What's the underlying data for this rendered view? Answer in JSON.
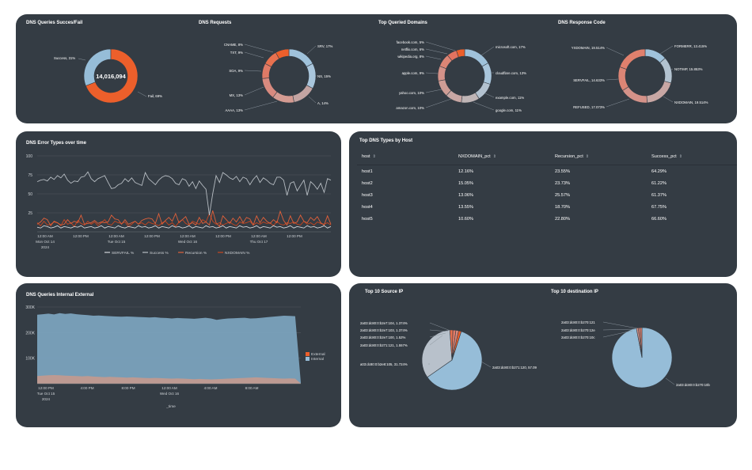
{
  "colors": {
    "panel": "#343c44",
    "orange": "#ec5f2b",
    "lightblue": "#96bdd8",
    "salmon": "#d88f84",
    "grey": "#b9bec4",
    "grid": "#50575f"
  },
  "panels": {
    "queries_success_fail": {
      "title": "DNS Queries Succes/Fail",
      "center_value": "14,016,094",
      "labels": [
        "Success, 31%",
        "Fail, 69%"
      ]
    },
    "dns_requests": {
      "title": "DNS Requests",
      "labels": [
        "CNAME, 8%",
        "TXT, 9%",
        "SOA, 9%",
        "MX, 13%",
        "AAAA, 13%",
        "SRV, 17%",
        "NS, 15%",
        "A, 14%"
      ]
    },
    "top_domains": {
      "title": "Top Queried Domains",
      "labels": [
        "facebook.com, 5%",
        "netflix.com, 6%",
        "wikipedia.org, 8%",
        "apple.com, 9%",
        "yahoo.com, 10%",
        "amazon.com, 10%",
        "microsoft.com, 17%",
        "cloudflare.com, 13%",
        "example.com, 11%",
        "google.com, 11%"
      ]
    },
    "response_code": {
      "title": "DNS Response Code",
      "labels": [
        "YXDOMAIN, 19.514%",
        "SERVFAIL, 14.633%",
        "REFUSED, 17.073%",
        "FORMERR, 13.415%",
        "NOTIMP, 15.853%",
        "NXDOMAIN, 19.514%"
      ]
    },
    "error_types": {
      "title": "DNS Error Types over time",
      "y_ticks": [
        "100",
        "75",
        "50",
        "25"
      ],
      "x_ticks": [
        {
          "l1": "12:00 AM",
          "l2": "Mon Oct 14",
          "l3": "2024"
        },
        {
          "l1": "12:00 PM",
          "l2": "",
          "l3": ""
        },
        {
          "l1": "12:00 AM",
          "l2": "Tue Oct 15",
          "l3": ""
        },
        {
          "l1": "12:00 PM",
          "l2": "",
          "l3": ""
        },
        {
          "l1": "12:00 AM",
          "l2": "Wed Oct 16",
          "l3": ""
        },
        {
          "l1": "12:00 PM",
          "l2": "",
          "l3": ""
        },
        {
          "l1": "12:00 AM",
          "l2": "Thu Oct 17",
          "l3": ""
        },
        {
          "l1": "12:00 PM",
          "l2": "",
          "l3": ""
        }
      ],
      "legend": [
        "SERVFAIL %",
        "Success %",
        "Recursion %",
        "NXDOMAIN %"
      ]
    },
    "dns_types_by_host": {
      "title": "Top DNS Types by Host",
      "columns": [
        "host",
        "NXDOMAIN_pct",
        "Recursion_pct",
        "Success_pct"
      ],
      "rows": [
        [
          "host1",
          "12.16%",
          "23.55%",
          "64.29%"
        ],
        [
          "host2",
          "15.05%",
          "23.73%",
          "61.22%"
        ],
        [
          "host3",
          "13.06%",
          "25.57%",
          "61.37%"
        ],
        [
          "host4",
          "13.55%",
          "18.70%",
          "67.75%"
        ],
        [
          "host5",
          "10.60%",
          "22.80%",
          "66.60%"
        ]
      ]
    },
    "internal_external": {
      "title": "DNS Queries Internal External",
      "y_ticks": [
        "300K",
        "200K",
        "100K"
      ],
      "x_ticks": [
        {
          "l1": "12:00 PM",
          "l2": "Tue Oct 15",
          "l3": "2024"
        },
        {
          "l1": "4:00 PM",
          "l2": "",
          "l3": ""
        },
        {
          "l1": "8:00 PM",
          "l2": "",
          "l3": ""
        },
        {
          "l1": "12:00 AM",
          "l2": "Wed Oct 16",
          "l3": ""
        },
        {
          "l1": "4:00 AM",
          "l2": "",
          "l3": ""
        },
        {
          "l1": "8:00 AM",
          "l2": "",
          "l3": ""
        }
      ],
      "x_axis_label": "_time",
      "legend": [
        "External",
        "Internal"
      ]
    },
    "source_ip": {
      "title": "Top 10 Source IP",
      "labels": [
        "2a03:dc80:0:b2e7:104, 1.374%",
        "2a03:dc80:0:b2e7:103, 1.374%",
        "2a03:dc80:0:b2e7:100, 1.52%",
        "2a03:dc80:0:b271:121, 1.557%",
        "a03:dc80:0:b2e8:105, 31.724%",
        "2a03:dc80:0:b271:120, 57.09"
      ]
    },
    "dest_ip": {
      "title": "Top 10 destination IP",
      "labels": [
        "2a03:dc80:0:b270:121",
        "2a03:dc80:0:b270:12e",
        "2a03:dc80:0:b270:10c",
        "2a03:dc80:0:b270:10b"
      ]
    }
  },
  "chart_data": [
    {
      "type": "pie",
      "title": "DNS Queries Succes/Fail",
      "labels": [
        "Success",
        "Fail"
      ],
      "values": [
        31,
        69
      ]
    },
    {
      "type": "pie",
      "title": "DNS Requests",
      "labels": [
        "SRV",
        "NS",
        "A",
        "AAAA",
        "MX",
        "SOA",
        "TXT",
        "CNAME"
      ],
      "values": [
        17,
        15,
        14,
        13,
        13,
        9,
        9,
        8
      ]
    },
    {
      "type": "pie",
      "title": "Top Queried Domains",
      "labels": [
        "microsoft.com",
        "cloudflare.com",
        "example.com",
        "google.com",
        "amazon.com",
        "yahoo.com",
        "apple.com",
        "wikipedia.org",
        "netflix.com",
        "facebook.com"
      ],
      "values": [
        17,
        13,
        11,
        11,
        10,
        10,
        9,
        8,
        6,
        5
      ]
    },
    {
      "type": "pie",
      "title": "DNS Response Code",
      "labels": [
        "FORMERR",
        "NOTIMP",
        "NXDOMAIN",
        "REFUSED",
        "SERVFAIL",
        "YXDOMAIN"
      ],
      "values": [
        13.415,
        15.853,
        19.514,
        17.073,
        14.633,
        19.514
      ]
    },
    {
      "type": "line",
      "title": "DNS Error Types over time",
      "ylim": [
        0,
        100
      ],
      "series": [
        {
          "name": "Success %",
          "values": [
            66,
            68,
            69,
            67,
            72,
            69,
            74,
            71,
            76,
            68,
            64,
            67,
            66,
            72,
            73,
            79,
            70,
            66,
            70,
            72,
            74,
            65,
            57,
            58,
            62,
            64,
            70,
            66,
            71,
            65,
            63,
            61,
            78,
            70,
            66,
            62,
            68,
            72,
            74,
            73,
            70,
            64,
            62,
            70,
            68,
            60,
            66,
            57,
            67,
            61,
            56,
            22,
            50,
            74,
            65,
            78,
            75,
            71,
            69,
            73,
            66,
            72,
            70,
            62,
            69,
            74,
            65,
            71,
            68,
            64,
            62,
            72,
            72,
            68,
            48,
            64,
            66,
            54,
            61,
            68,
            48,
            66,
            62,
            56,
            64,
            52,
            70,
            68
          ]
        },
        {
          "name": "Recursion %",
          "values": [
            10,
            13,
            18,
            16,
            8,
            14,
            12,
            9,
            10,
            16,
            11,
            14,
            12,
            22,
            10,
            11,
            12,
            15,
            11,
            13,
            12,
            13,
            22,
            17,
            16,
            10,
            16,
            10,
            12,
            14,
            10,
            15,
            17,
            18,
            17,
            11,
            24,
            10,
            15,
            19,
            14,
            24,
            12,
            16,
            20,
            10,
            12,
            9,
            19,
            11,
            13,
            9,
            28,
            12,
            7,
            21,
            16,
            11,
            18,
            13,
            20,
            12,
            19,
            17,
            9,
            21,
            12,
            19,
            14,
            11,
            16,
            12,
            27,
            15,
            9,
            21,
            11,
            13,
            22,
            14,
            12,
            19,
            15,
            20,
            12,
            9,
            21,
            10
          ]
        },
        {
          "name": "NXDOMAIN %",
          "values": [
            12,
            8,
            14,
            9,
            10,
            13,
            12,
            8,
            16,
            10,
            12,
            7,
            15,
            11,
            9,
            14,
            10,
            13,
            8,
            12,
            16,
            10,
            9,
            14,
            12,
            11,
            13,
            7,
            10,
            14,
            10,
            12,
            9,
            13,
            11,
            10,
            8,
            12,
            14,
            9,
            12,
            7,
            13,
            16,
            11,
            9,
            14,
            12,
            10,
            16,
            13,
            24,
            14,
            10,
            12,
            9,
            11,
            13,
            10,
            8,
            13,
            11,
            12,
            14,
            9,
            12,
            10,
            13,
            11,
            12,
            8,
            14,
            10,
            9,
            12,
            11,
            13,
            10,
            9,
            14,
            10,
            12,
            9,
            13,
            11,
            10,
            12,
            9
          ]
        },
        {
          "name": "SERVFAIL %",
          "values": [
            6,
            5,
            8,
            7,
            5,
            6,
            8,
            5,
            7,
            6,
            5,
            7,
            6,
            8,
            5,
            6,
            7,
            5,
            6,
            8,
            5,
            7,
            6,
            5,
            8,
            6,
            5,
            7,
            6,
            5,
            8,
            6,
            7,
            5,
            6,
            8,
            5,
            7,
            6,
            5,
            8,
            6,
            7,
            5,
            6,
            8,
            5,
            7,
            6,
            5,
            8,
            6,
            7,
            5,
            6,
            8,
            5,
            7,
            6,
            5,
            8,
            6,
            7,
            5,
            6,
            8,
            5,
            7,
            6,
            5,
            8,
            6,
            7,
            5,
            6,
            8,
            5,
            7,
            6,
            5,
            8,
            6,
            7,
            5,
            6,
            8,
            5,
            7
          ]
        }
      ]
    },
    {
      "type": "area",
      "title": "DNS Queries Internal External",
      "ylim": [
        0,
        300000
      ],
      "series": [
        {
          "name": "Internal",
          "values": [
            270000,
            272000,
            274000,
            271000,
            276000,
            273000,
            275000,
            272000,
            270000,
            268000,
            266000,
            267000,
            265000,
            264000,
            263000,
            262000,
            263000,
            262000,
            261000,
            260000,
            259000,
            260000,
            258000,
            257000,
            255000,
            257000,
            256000,
            255000,
            254000,
            256000,
            258000,
            255000,
            250000,
            253000,
            255000,
            256000,
            257000,
            258000,
            255000,
            256000,
            258000,
            260000,
            262000,
            264000,
            266000,
            265000,
            264000,
            5000
          ]
        },
        {
          "name": "External",
          "values": [
            30000,
            32000,
            33000,
            34000,
            33000,
            32000,
            31000,
            30000,
            29000,
            30000,
            28000,
            27000,
            26000,
            27000,
            26000,
            25000,
            24000,
            25000,
            24000,
            23000,
            22000,
            23000,
            22000,
            21000,
            20000,
            21000,
            20000,
            19000,
            18000,
            19000,
            18000,
            17000,
            18000,
            19000,
            20000,
            21000,
            22000,
            23000,
            24000,
            25000,
            24000,
            23000,
            22000,
            21000,
            20000,
            21000,
            20000,
            1000
          ]
        }
      ]
    },
    {
      "type": "pie",
      "title": "Top 10 Source IP",
      "labels": [
        "2a03:dc80:0:b271:120",
        "a03:dc80:0:b2e8:105",
        "2a03:dc80:0:b271:121",
        "2a03:dc80:0:b2e7:100",
        "2a03:dc80:0:b2e7:103",
        "2a03:dc80:0:b2e7:104"
      ],
      "values": [
        57.09,
        31.724,
        1.557,
        1.52,
        1.374,
        1.374
      ]
    },
    {
      "type": "pie",
      "title": "Top 10 destination IP",
      "labels": [
        "2a03:dc80:0:b270:10b",
        "2a03:dc80:0:b270:121",
        "2a03:dc80:0:b270:12e",
        "2a03:dc80:0:b270:10c"
      ],
      "values": [
        97.0,
        1.0,
        1.0,
        1.0
      ]
    }
  ]
}
